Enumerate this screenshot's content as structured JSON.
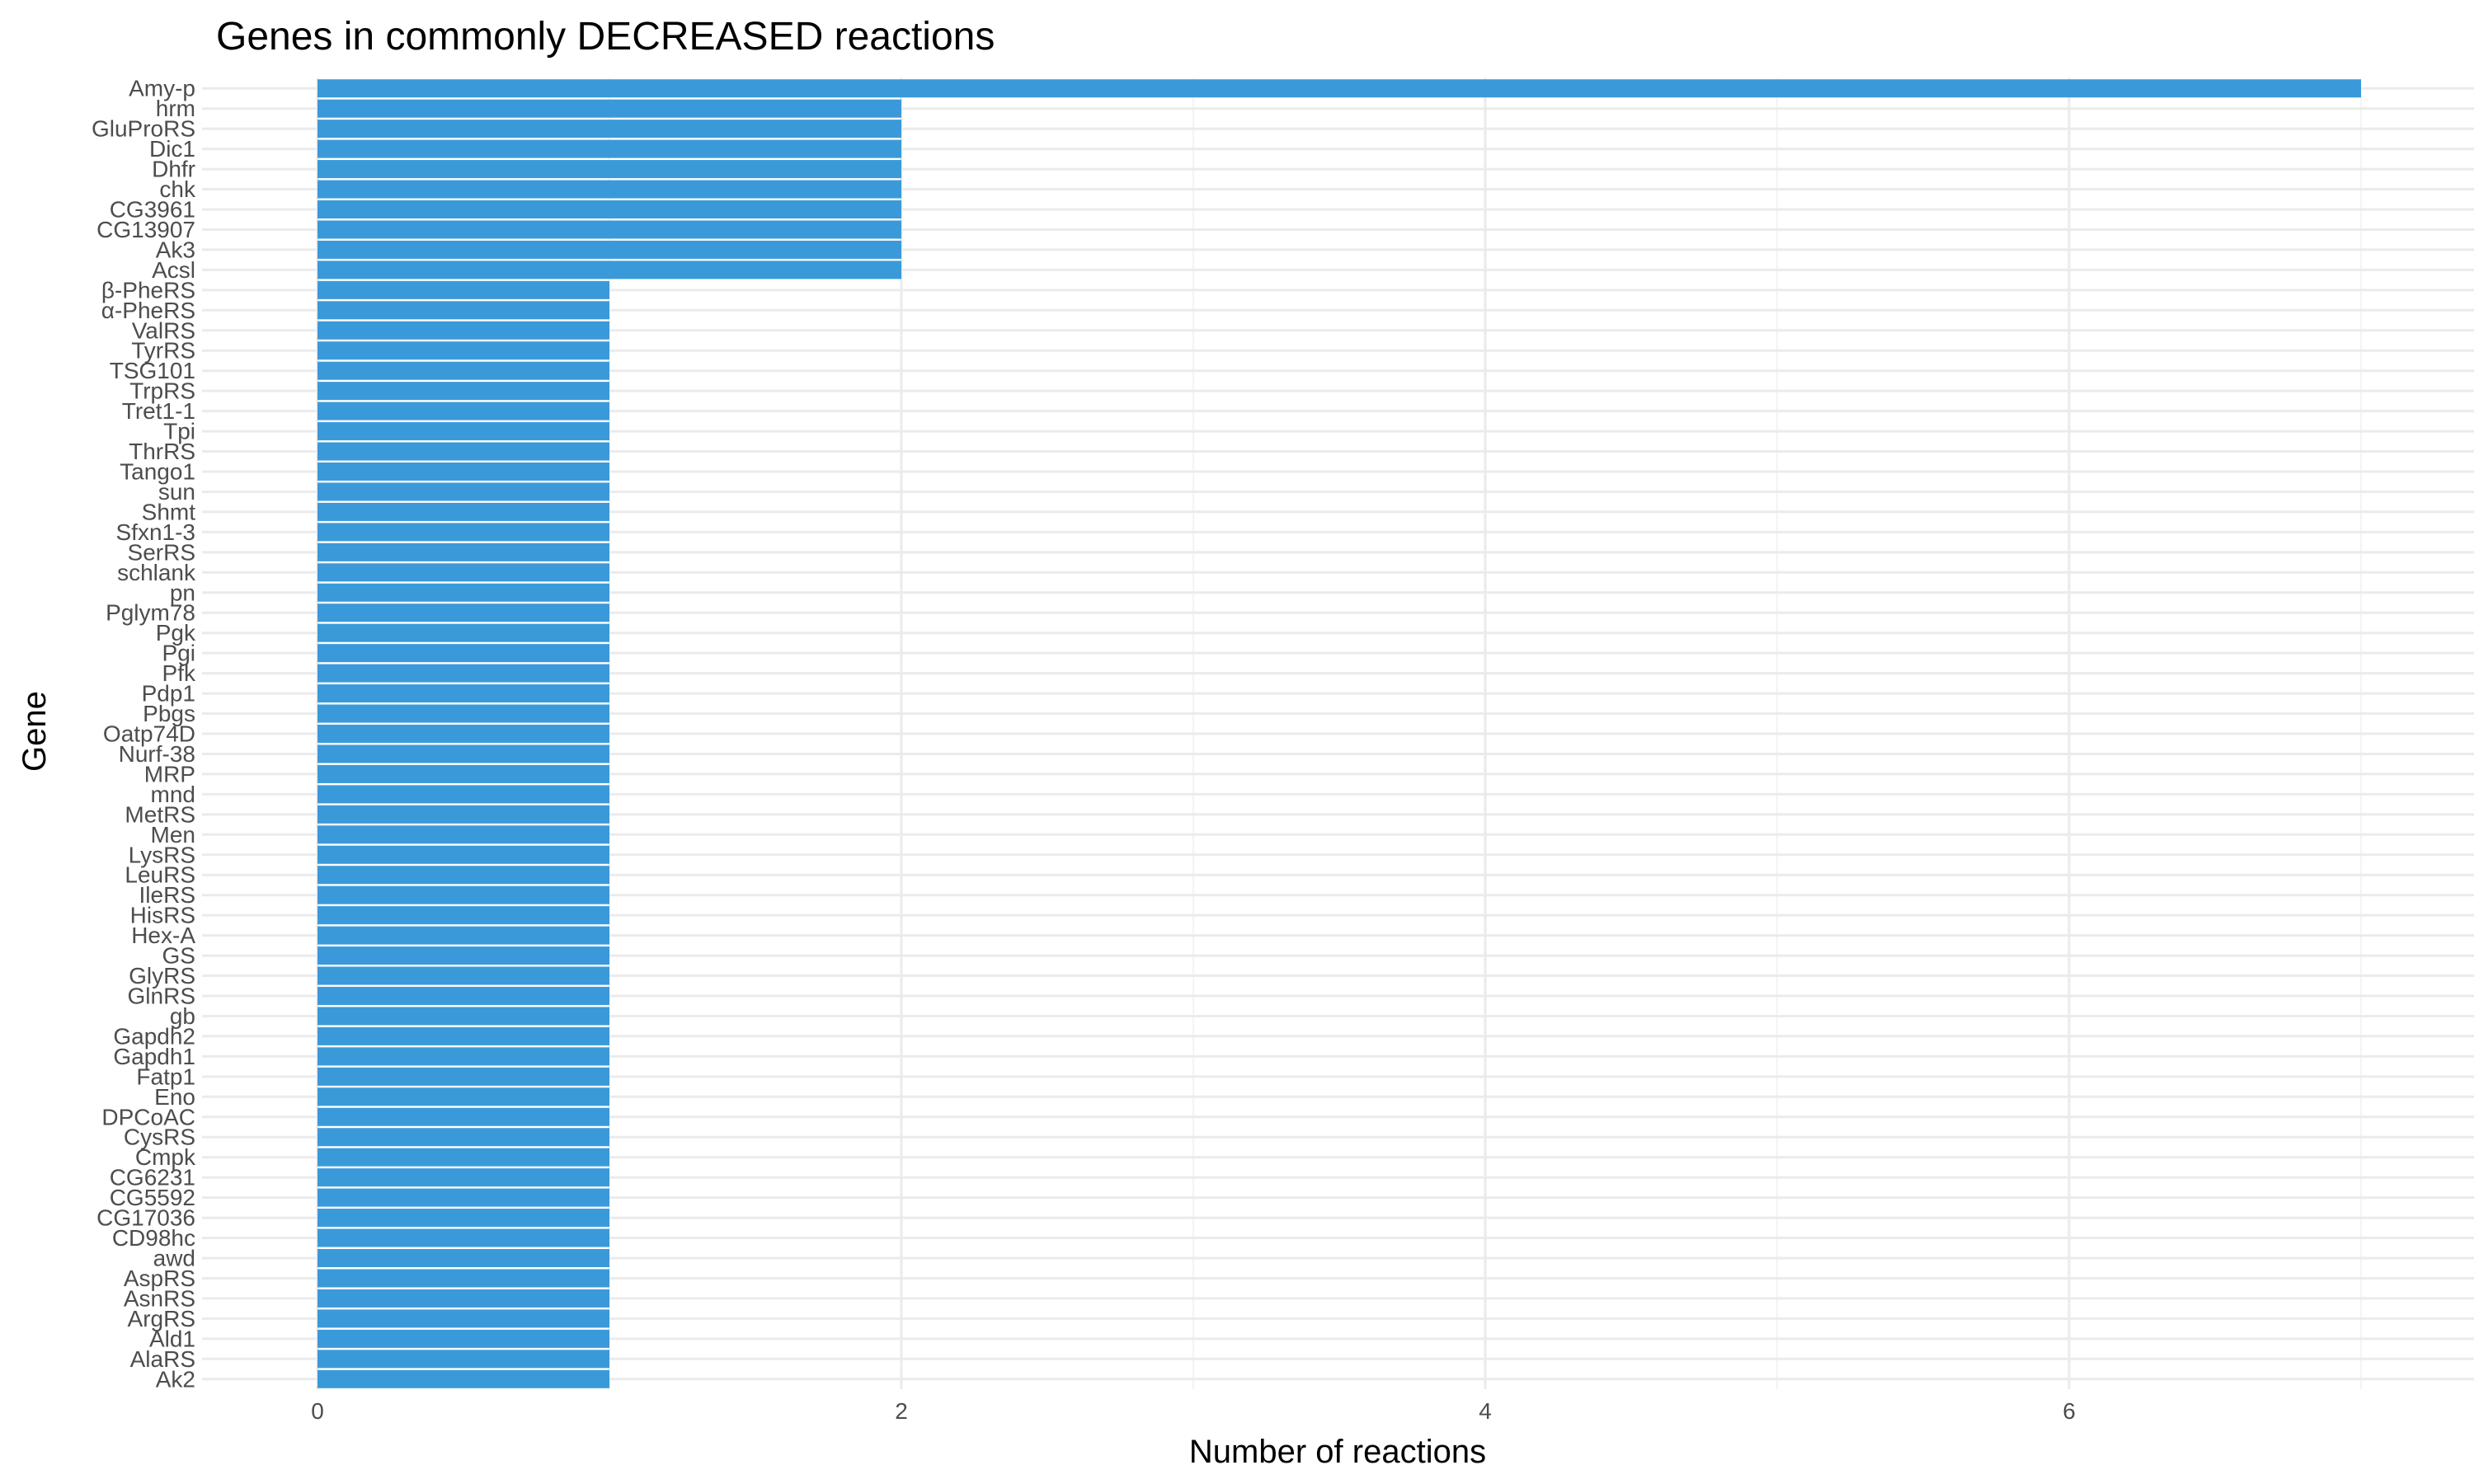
{
  "chart_data": {
    "type": "bar",
    "orientation": "horizontal",
    "title": "Genes in commonly DECREASED reactions",
    "xlabel": "Number of reactions",
    "ylabel": "Gene",
    "xlim": [
      0,
      7
    ],
    "xticks": [
      0,
      2,
      4,
      6
    ],
    "grid": true,
    "legend": "none",
    "bar_color": "#3a9ad9",
    "categories": [
      "Amy-p",
      "hrm",
      "GluProRS",
      "Dic1",
      "Dhfr",
      "chk",
      "CG3961",
      "CG13907",
      "Ak3",
      "Acsl",
      "β-PheRS",
      "α-PheRS",
      "ValRS",
      "TyrRS",
      "TSG101",
      "TrpRS",
      "Tret1-1",
      "Tpi",
      "ThrRS",
      "Tango1",
      "sun",
      "Shmt",
      "Sfxn1-3",
      "SerRS",
      "schlank",
      "pn",
      "Pglym78",
      "Pgk",
      "Pgi",
      "Pfk",
      "Pdp1",
      "Pbgs",
      "Oatp74D",
      "Nurf-38",
      "MRP",
      "mnd",
      "MetRS",
      "Men",
      "LysRS",
      "LeuRS",
      "IleRS",
      "HisRS",
      "Hex-A",
      "GS",
      "GlyRS",
      "GlnRS",
      "gb",
      "Gapdh2",
      "Gapdh1",
      "Fatp1",
      "Eno",
      "DPCoAC",
      "CysRS",
      "Cmpk",
      "CG6231",
      "CG5592",
      "CG17036",
      "CD98hc",
      "awd",
      "AspRS",
      "AsnRS",
      "ArgRS",
      "Ald1",
      "AlaRS",
      "Ak2"
    ],
    "values": [
      7,
      2,
      2,
      2,
      2,
      2,
      2,
      2,
      2,
      2,
      1,
      1,
      1,
      1,
      1,
      1,
      1,
      1,
      1,
      1,
      1,
      1,
      1,
      1,
      1,
      1,
      1,
      1,
      1,
      1,
      1,
      1,
      1,
      1,
      1,
      1,
      1,
      1,
      1,
      1,
      1,
      1,
      1,
      1,
      1,
      1,
      1,
      1,
      1,
      1,
      1,
      1,
      1,
      1,
      1,
      1,
      1,
      1,
      1,
      1,
      1,
      1,
      1,
      1,
      1
    ]
  }
}
